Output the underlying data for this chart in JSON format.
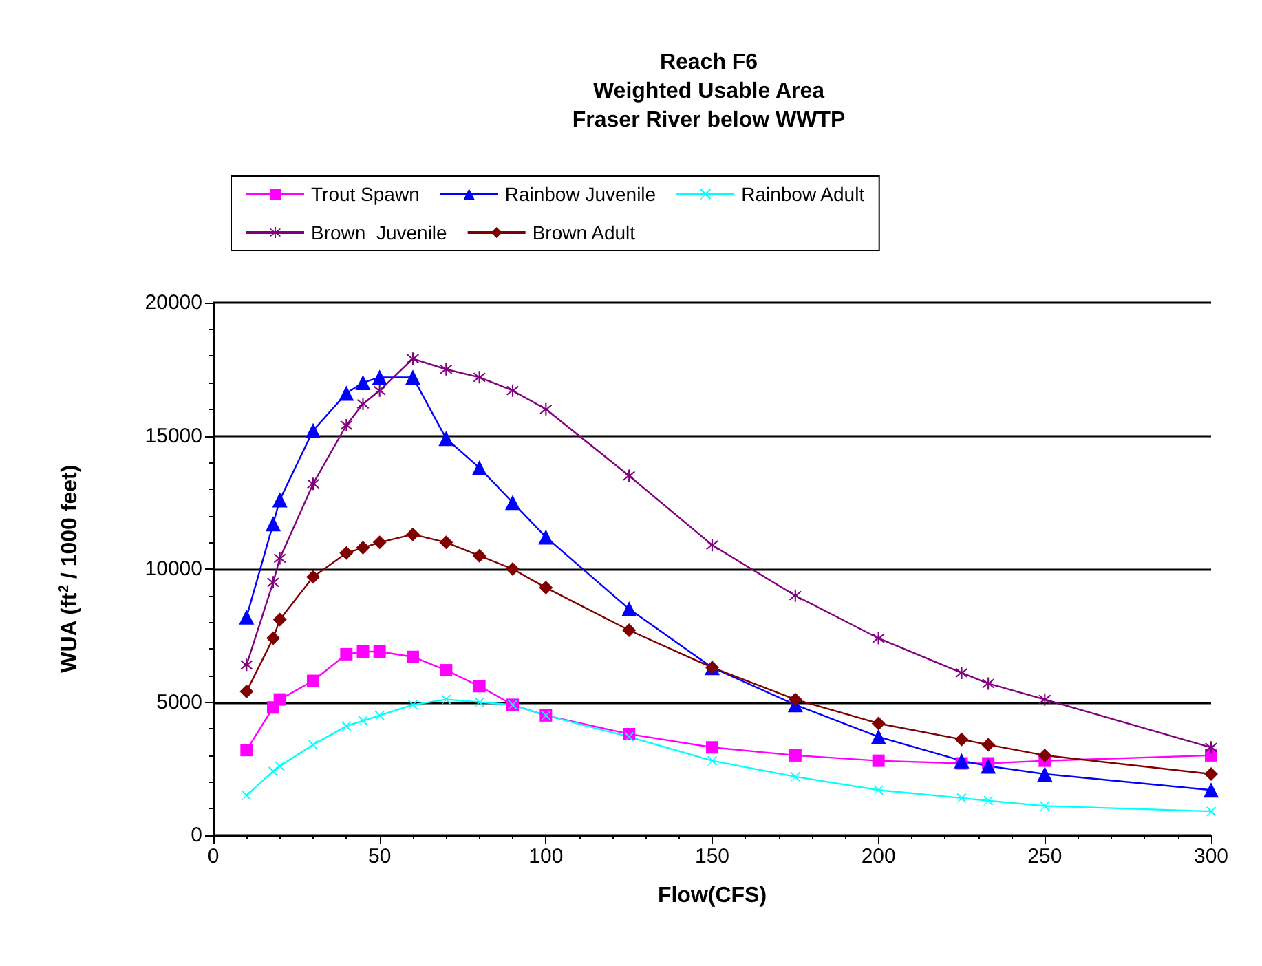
{
  "chart_data": {
    "type": "line",
    "title": "Reach F6\nWeighted Usable Area\nFraser River below WWTP",
    "xlabel": "Flow(CFS)",
    "ylabel": "WUA (ft$^{2}$ / 1000 feet)",
    "x": [
      10,
      18,
      20,
      30,
      40,
      45,
      50,
      60,
      70,
      80,
      90,
      100,
      125,
      150,
      175,
      200,
      225,
      233,
      250,
      300
    ],
    "series": [
      {
        "name": "Trout Spawn",
        "color": "#ff00ff",
        "marker": "square",
        "values": [
          3200,
          4800,
          5100,
          5800,
          6800,
          6900,
          6900,
          6700,
          6200,
          5600,
          4900,
          4500,
          3800,
          3300,
          3000,
          2800,
          2700,
          2700,
          2800,
          3000
        ]
      },
      {
        "name": "Rainbow Juvenile",
        "color": "#0000ff",
        "marker": "triangle",
        "values": [
          8200,
          11700,
          12600,
          15200,
          16600,
          17000,
          17200,
          17200,
          14900,
          13800,
          12500,
          11200,
          8500,
          6300,
          4900,
          3700,
          2800,
          2600,
          2300,
          1700
        ]
      },
      {
        "name": "Rainbow Adult",
        "color": "#00ffff",
        "marker": "cross",
        "values": [
          1500,
          2400,
          2600,
          3400,
          4100,
          4300,
          4500,
          4900,
          5100,
          5000,
          4900,
          4500,
          3700,
          2800,
          2200,
          1700,
          1400,
          1300,
          1100,
          900
        ]
      },
      {
        "name": "Brown  Juvenile",
        "color": "#800080",
        "marker": "star",
        "values": [
          6400,
          9500,
          10400,
          13200,
          15400,
          16200,
          16700,
          17900,
          17500,
          17200,
          16700,
          16000,
          13500,
          10900,
          9000,
          7400,
          6100,
          5700,
          5100,
          3300
        ]
      },
      {
        "name": "Brown Adult",
        "color": "#800000",
        "marker": "diamond",
        "values": [
          5400,
          7400,
          8100,
          9700,
          10600,
          10800,
          11000,
          11300,
          11000,
          10500,
          10000,
          9300,
          7700,
          6300,
          5100,
          4200,
          3600,
          3400,
          3000,
          2300
        ]
      }
    ],
    "xlim": [
      0,
      300
    ],
    "xticks": [
      0,
      50,
      100,
      150,
      200,
      250,
      300
    ],
    "ylim": [
      0,
      20000
    ],
    "yticks": [
      0,
      5000,
      10000,
      15000,
      20000
    ],
    "grid": "y",
    "legend": "top",
    "line_style": "solid"
  }
}
